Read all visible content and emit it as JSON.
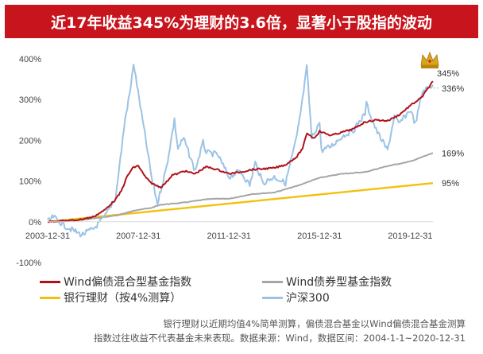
{
  "header": {
    "title": "近17年收益345%为理财的3.6倍，显著小于股指的波动"
  },
  "chart_data": {
    "type": "line",
    "x_ticks": [
      "2003-12-31",
      "2007-12-31",
      "2011-12-31",
      "2015-12-31",
      "2019-12-31"
    ],
    "x_range": [
      "2003-12-31",
      "2020-12-31"
    ],
    "y_ticks": [
      "400%",
      "300%",
      "200%",
      "100%",
      "0%",
      "-100%"
    ],
    "ylim": [
      -100,
      400
    ],
    "grid": false,
    "legend_position": "bottom",
    "series": [
      {
        "name": "Wind偏债混合型基金指数",
        "color": "#b0121b",
        "end_label": "345%",
        "points": [
          [
            "2003-12-31",
            0
          ],
          [
            "2004-06-30",
            2
          ],
          [
            "2004-12-31",
            3
          ],
          [
            "2005-06-30",
            6
          ],
          [
            "2005-12-31",
            12
          ],
          [
            "2006-06-30",
            28
          ],
          [
            "2006-12-31",
            55
          ],
          [
            "2007-03-31",
            75
          ],
          [
            "2007-06-30",
            110
          ],
          [
            "2007-09-30",
            132
          ],
          [
            "2007-12-31",
            138
          ],
          [
            "2008-03-31",
            115
          ],
          [
            "2008-06-30",
            98
          ],
          [
            "2008-09-30",
            90
          ],
          [
            "2008-12-31",
            85
          ],
          [
            "2009-03-31",
            98
          ],
          [
            "2009-06-30",
            115
          ],
          [
            "2009-09-30",
            118
          ],
          [
            "2009-12-31",
            125
          ],
          [
            "2010-06-30",
            118
          ],
          [
            "2010-12-31",
            135
          ],
          [
            "2011-06-30",
            128
          ],
          [
            "2011-12-31",
            118
          ],
          [
            "2012-06-30",
            122
          ],
          [
            "2012-12-31",
            128
          ],
          [
            "2013-06-30",
            130
          ],
          [
            "2013-12-31",
            132
          ],
          [
            "2014-06-30",
            140
          ],
          [
            "2014-12-31",
            160
          ],
          [
            "2015-03-31",
            180
          ],
          [
            "2015-06-12",
            218
          ],
          [
            "2015-09-30",
            205
          ],
          [
            "2015-12-31",
            222
          ],
          [
            "2016-06-30",
            212
          ],
          [
            "2016-12-31",
            220
          ],
          [
            "2017-06-30",
            228
          ],
          [
            "2017-12-31",
            245
          ],
          [
            "2018-06-30",
            250
          ],
          [
            "2018-12-31",
            248
          ],
          [
            "2019-06-30",
            262
          ],
          [
            "2019-12-31",
            285
          ],
          [
            "2020-06-30",
            305
          ],
          [
            "2020-12-31",
            345
          ]
        ]
      },
      {
        "name": "Wind债券型基金指数",
        "color": "#a6a6a6",
        "end_label": "169%",
        "points": [
          [
            "2003-12-31",
            0
          ],
          [
            "2004-12-31",
            2
          ],
          [
            "2005-12-31",
            8
          ],
          [
            "2006-12-31",
            15
          ],
          [
            "2007-12-31",
            30
          ],
          [
            "2008-06-30",
            33
          ],
          [
            "2008-12-31",
            42
          ],
          [
            "2009-12-31",
            47
          ],
          [
            "2010-12-31",
            55
          ],
          [
            "2011-06-30",
            57
          ],
          [
            "2011-12-31",
            56
          ],
          [
            "2012-12-31",
            68
          ],
          [
            "2013-12-31",
            72
          ],
          [
            "2014-12-31",
            88
          ],
          [
            "2015-12-31",
            108
          ],
          [
            "2016-12-31",
            118
          ],
          [
            "2017-12-31",
            122
          ],
          [
            "2018-12-31",
            137
          ],
          [
            "2019-12-31",
            148
          ],
          [
            "2020-12-31",
            169
          ]
        ]
      },
      {
        "name": "银行理财（按4%测算）",
        "color": "#f2c10e",
        "end_label": "95%",
        "points": [
          [
            "2003-12-31",
            0
          ],
          [
            "2020-12-31",
            95
          ]
        ]
      },
      {
        "name": "沪深300",
        "color": "#9cc3e5",
        "end_label": "336%",
        "points": [
          [
            "2003-12-31",
            0
          ],
          [
            "2004-03-31",
            12
          ],
          [
            "2004-09-30",
            -10
          ],
          [
            "2005-06-30",
            -32
          ],
          [
            "2005-12-31",
            -18
          ],
          [
            "2006-06-30",
            10
          ],
          [
            "2006-12-31",
            60
          ],
          [
            "2007-05-31",
            250
          ],
          [
            "2007-08-31",
            330
          ],
          [
            "2007-10-16",
            390
          ],
          [
            "2008-01-15",
            300
          ],
          [
            "2008-04-30",
            200
          ],
          [
            "2008-07-31",
            110
          ],
          [
            "2008-11-04",
            45
          ],
          [
            "2009-03-31",
            135
          ],
          [
            "2009-08-04",
            250
          ],
          [
            "2009-09-30",
            180
          ],
          [
            "2009-12-31",
            205
          ],
          [
            "2010-07-02",
            125
          ],
          [
            "2010-11-10",
            195
          ],
          [
            "2010-12-31",
            170
          ],
          [
            "2011-06-30",
            165
          ],
          [
            "2011-12-31",
            110
          ],
          [
            "2012-06-30",
            125
          ],
          [
            "2012-12-01",
            90
          ],
          [
            "2013-02-28",
            145
          ],
          [
            "2013-06-30",
            95
          ],
          [
            "2013-12-31",
            110
          ],
          [
            "2014-06-30",
            95
          ],
          [
            "2014-12-31",
            210
          ],
          [
            "2015-03-31",
            300
          ],
          [
            "2015-06-08",
            380
          ],
          [
            "2015-08-26",
            205
          ],
          [
            "2015-12-31",
            245
          ],
          [
            "2016-01-28",
            175
          ],
          [
            "2016-06-30",
            185
          ],
          [
            "2016-12-31",
            210
          ],
          [
            "2017-06-30",
            225
          ],
          [
            "2017-12-31",
            265
          ],
          [
            "2018-01-24",
            290
          ],
          [
            "2018-06-30",
            225
          ],
          [
            "2018-12-31",
            175
          ],
          [
            "2019-04-19",
            260
          ],
          [
            "2019-06-30",
            240
          ],
          [
            "2019-12-31",
            275
          ],
          [
            "2020-03-23",
            240
          ],
          [
            "2020-07-15",
            320
          ],
          [
            "2020-12-31",
            336
          ]
        ]
      }
    ]
  },
  "footnote": {
    "line1": "银行理财以近期均值4%简单测算，偏债混合基金以Wind偏债混合基金测算",
    "line2": "指数过往收益不代表基金未来表现。数据来源：Wind，数据区间：2004-1-1~2020-12-31"
  },
  "icons": {
    "crown": "crown-icon"
  }
}
